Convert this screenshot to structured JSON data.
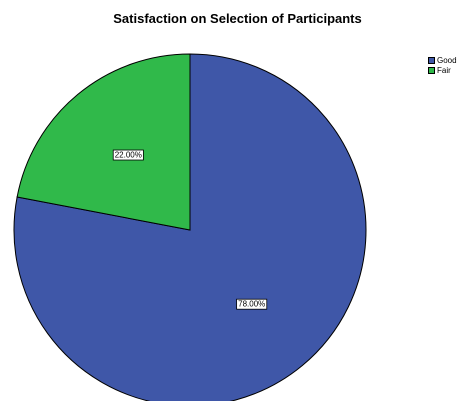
{
  "chart_data": {
    "type": "pie",
    "title": "Satisfaction on Selection of Participants",
    "slices": [
      {
        "label": "Good",
        "value": 78.0,
        "display": "78.00%",
        "color": "#3f57a8"
      },
      {
        "label": "Fair",
        "value": 22.0,
        "display": "22.00%",
        "color": "#30b94a"
      }
    ],
    "legend_position": "top-right"
  }
}
